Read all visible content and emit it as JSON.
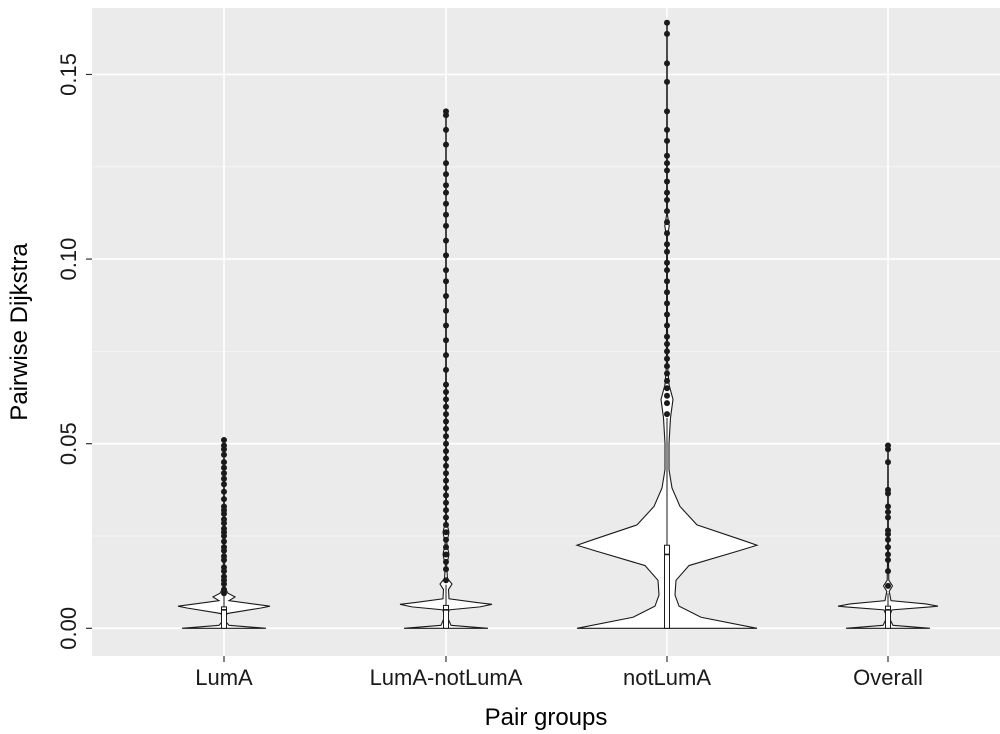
{
  "chart_data": {
    "type": "violin",
    "title": "",
    "xlabel": "Pair groups",
    "ylabel": "Pairwise Dijkstra",
    "ylim": [
      -0.0075,
      0.168
    ],
    "y_ticks": [
      0.0,
      0.05,
      0.1,
      0.15
    ],
    "y_tick_labels": [
      "0.00",
      "0.05",
      "0.10",
      "0.15"
    ],
    "grid": true,
    "categories": [
      "LumA",
      "LumA-notLumA",
      "notLumA",
      "Overall"
    ],
    "groups": [
      {
        "name": "LumA",
        "min": 0.0,
        "q1": 0.0,
        "median": 0.005,
        "q3": 0.0058,
        "whisker_high": 0.0087,
        "density": [
          [
            0.0,
            0.42
          ],
          [
            0.0008,
            0.05
          ],
          [
            0.002,
            0.01
          ],
          [
            0.004,
            0.03
          ],
          [
            0.0055,
            0.37
          ],
          [
            0.006,
            0.46
          ],
          [
            0.0065,
            0.32
          ],
          [
            0.0075,
            0.05
          ],
          [
            0.0085,
            0.11
          ],
          [
            0.0095,
            0.04
          ],
          [
            0.011,
            0.008
          ],
          [
            0.014,
            0.01
          ],
          [
            0.02,
            0.004
          ],
          [
            0.051,
            0.002
          ]
        ],
        "outliers": [
          0.0095,
          0.0105,
          0.012,
          0.013,
          0.014,
          0.0155,
          0.0165,
          0.0185,
          0.0195,
          0.021,
          0.022,
          0.0235,
          0.025,
          0.026,
          0.027,
          0.0285,
          0.0295,
          0.031,
          0.032,
          0.033,
          0.035,
          0.037,
          0.039,
          0.0405,
          0.042,
          0.0435,
          0.045,
          0.047,
          0.0485,
          0.0495,
          0.051
        ]
      },
      {
        "name": "LumA-notLumA",
        "min": 0.0,
        "q1": 0.0,
        "median": 0.005,
        "q3": 0.0062,
        "whisker_high": 0.0118,
        "density": [
          [
            0.0,
            0.42
          ],
          [
            0.0008,
            0.05
          ],
          [
            0.003,
            0.015
          ],
          [
            0.005,
            0.03
          ],
          [
            0.0058,
            0.34
          ],
          [
            0.0065,
            0.46
          ],
          [
            0.007,
            0.3
          ],
          [
            0.008,
            0.03
          ],
          [
            0.0105,
            0.025
          ],
          [
            0.012,
            0.06
          ],
          [
            0.0135,
            0.015
          ],
          [
            0.017,
            0.006
          ],
          [
            0.02,
            0.03
          ],
          [
            0.023,
            0.008
          ],
          [
            0.026,
            0.03
          ],
          [
            0.029,
            0.004
          ],
          [
            0.14,
            0.002
          ]
        ],
        "outliers": [
          0.013,
          0.016,
          0.018,
          0.02,
          0.022,
          0.024,
          0.026,
          0.028,
          0.03,
          0.032,
          0.034,
          0.036,
          0.038,
          0.04,
          0.042,
          0.044,
          0.046,
          0.048,
          0.05,
          0.052,
          0.054,
          0.056,
          0.058,
          0.06,
          0.062,
          0.064,
          0.066,
          0.07,
          0.074,
          0.078,
          0.082,
          0.086,
          0.09,
          0.094,
          0.097,
          0.101,
          0.105,
          0.109,
          0.112,
          0.115,
          0.118,
          0.12,
          0.123,
          0.126,
          0.131,
          0.135,
          0.139,
          0.14
        ]
      },
      {
        "name": "notLumA",
        "min": 0.0,
        "q1": 0.0,
        "median": 0.02,
        "q3": 0.0225,
        "whisker_high": 0.057,
        "density": [
          [
            0.0,
            0.9
          ],
          [
            0.003,
            0.34
          ],
          [
            0.006,
            0.12
          ],
          [
            0.009,
            0.08
          ],
          [
            0.013,
            0.09
          ],
          [
            0.017,
            0.22
          ],
          [
            0.021,
            0.72
          ],
          [
            0.0225,
            0.9
          ],
          [
            0.024,
            0.74
          ],
          [
            0.028,
            0.3
          ],
          [
            0.033,
            0.13
          ],
          [
            0.038,
            0.05
          ],
          [
            0.043,
            0.02
          ],
          [
            0.05,
            0.02
          ],
          [
            0.057,
            0.035
          ],
          [
            0.062,
            0.06
          ],
          [
            0.066,
            0.02
          ],
          [
            0.071,
            0.006
          ],
          [
            0.09,
            0.004
          ],
          [
            0.106,
            0.004
          ],
          [
            0.109,
            0.022
          ],
          [
            0.112,
            0.004
          ],
          [
            0.13,
            0.003
          ],
          [
            0.164,
            0.002
          ]
        ],
        "outliers": [
          0.058,
          0.061,
          0.063,
          0.065,
          0.067,
          0.069,
          0.071,
          0.073,
          0.075,
          0.077,
          0.079,
          0.082,
          0.085,
          0.088,
          0.091,
          0.094,
          0.097,
          0.099,
          0.102,
          0.104,
          0.107,
          0.11,
          0.113,
          0.116,
          0.118,
          0.121,
          0.124,
          0.126,
          0.128,
          0.132,
          0.135,
          0.14,
          0.148,
          0.153,
          0.161,
          0.164
        ]
      },
      {
        "name": "Overall",
        "min": 0.0,
        "q1": 0.0,
        "median": 0.005,
        "q3": 0.006,
        "whisker_high": 0.0095,
        "density": [
          [
            0.0,
            0.42
          ],
          [
            0.0008,
            0.05
          ],
          [
            0.003,
            0.01
          ],
          [
            0.005,
            0.04
          ],
          [
            0.0058,
            0.42
          ],
          [
            0.006,
            0.5
          ],
          [
            0.0066,
            0.38
          ],
          [
            0.0075,
            0.03
          ],
          [
            0.01,
            0.012
          ],
          [
            0.0115,
            0.045
          ],
          [
            0.013,
            0.008
          ],
          [
            0.02,
            0.004
          ],
          [
            0.05,
            0.002
          ]
        ],
        "outliers": [
          0.0115,
          0.0155,
          0.0185,
          0.02,
          0.022,
          0.024,
          0.0255,
          0.0265,
          0.03,
          0.0315,
          0.033,
          0.0365,
          0.0375,
          0.045,
          0.0485,
          0.0495
        ]
      }
    ]
  }
}
